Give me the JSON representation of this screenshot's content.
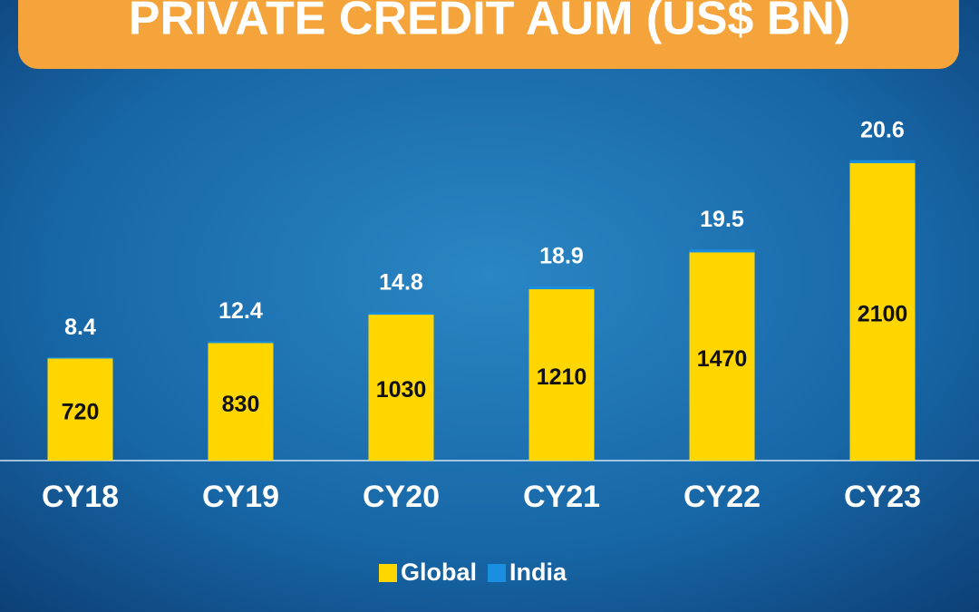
{
  "chart_data": {
    "type": "stacked-bar",
    "title": "PRIVATE CREDIT AUM (US$ BN)",
    "categories": [
      "CY18",
      "CY19",
      "CY20",
      "CY21",
      "CY22",
      "CY23"
    ],
    "series": [
      {
        "name": "Global",
        "color": "#ffd600",
        "values": [
          720,
          830,
          1030,
          1210,
          1470,
          2100
        ]
      },
      {
        "name": "India",
        "color": "#1a8fe0",
        "values": [
          8.4,
          12.4,
          14.8,
          18.9,
          19.5,
          20.6
        ]
      }
    ],
    "ylim": [
      0,
      2400
    ]
  }
}
